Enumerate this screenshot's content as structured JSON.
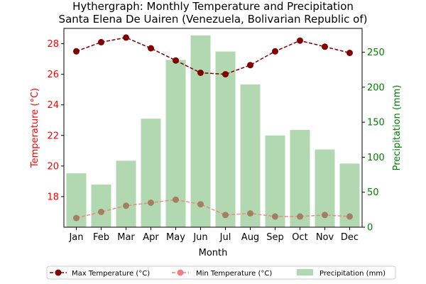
{
  "chart_data": {
    "type": "bar+line",
    "title_line1": "Hythergraph: Monthly Temperature and Precipitation",
    "title_line2": "Santa Elena De Uairen (Venezuela, Bolivarian Republic of)",
    "xlabel": "Month",
    "ylabel_left": "Temperature (°C)",
    "ylabel_right": "Precipitation (mm)",
    "categories": [
      "Jan",
      "Feb",
      "Mar",
      "Apr",
      "May",
      "Jun",
      "Jul",
      "Aug",
      "Sep",
      "Oct",
      "Nov",
      "Dec"
    ],
    "y_left_lim": [
      16.0,
      29.0
    ],
    "y_left_ticks": [
      18,
      20,
      22,
      24,
      26,
      28
    ],
    "y_right_lim": [
      0,
      284
    ],
    "y_right_ticks": [
      0,
      50,
      100,
      150,
      200,
      250
    ],
    "series": [
      {
        "name": "Max Temperature (°C)",
        "axis": "left",
        "kind": "line",
        "color": "#800000",
        "values": [
          27.5,
          28.1,
          28.4,
          27.7,
          26.9,
          26.1,
          26.0,
          26.6,
          27.5,
          28.2,
          27.8,
          27.4
        ]
      },
      {
        "name": "Min Temperature (°C)",
        "axis": "left",
        "kind": "line",
        "color": "#f08080",
        "values": [
          16.6,
          17.0,
          17.4,
          17.6,
          17.8,
          17.5,
          16.8,
          16.9,
          16.7,
          16.7,
          16.8,
          16.7
        ]
      },
      {
        "name": "Precipitation (mm)",
        "axis": "right",
        "kind": "bar",
        "color": "#b2d8b2",
        "values": [
          77,
          61,
          95,
          155,
          239,
          274,
          251,
          204,
          131,
          139,
          111,
          91
        ]
      }
    ],
    "legend": {
      "placement": "bottom",
      "columns": 3
    },
    "grid": false
  }
}
